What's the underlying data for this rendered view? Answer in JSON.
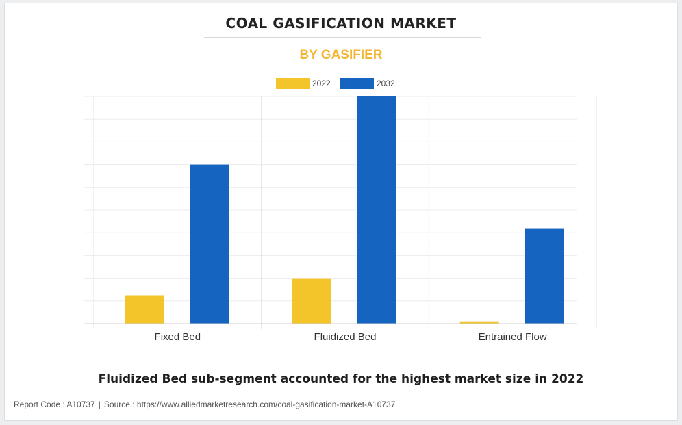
{
  "chart_data": {
    "type": "bar",
    "title": "COAL GASIFICATION MARKET",
    "subtitle": "BY GASIFIER",
    "categories": [
      "Fixed Bed",
      "Fluidized Bed",
      "Entrained Flow"
    ],
    "series": [
      {
        "name": "2022",
        "color": "#f4c52a",
        "values": [
          1.25,
          2.0,
          0.1
        ]
      },
      {
        "name": "2032",
        "color": "#1565c0",
        "values": [
          7.0,
          10.0,
          4.2
        ]
      }
    ],
    "ylim": [
      0,
      10
    ],
    "grid": true,
    "legend": "top-center",
    "xlabel": "",
    "ylabel": ""
  },
  "headline": "Fluidized Bed sub-segment accounted for the highest market size in 2022",
  "footer": {
    "report_code": "Report Code : A10737",
    "separator": "|",
    "source": "Source : https://www.alliedmarketresearch.com/coal-gasification-market-A10737"
  }
}
